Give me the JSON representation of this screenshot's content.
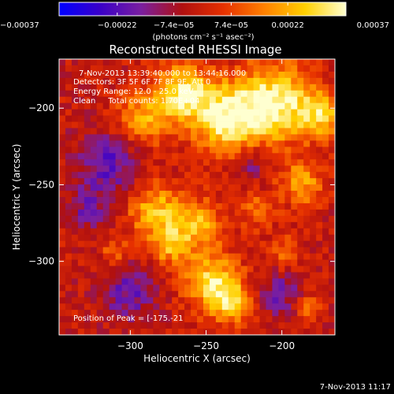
{
  "chart_data": {
    "type": "heatmap",
    "title": "Reconstructed RHESSI Image",
    "xlabel": "Heliocentric X (arcsec)",
    "ylabel": "Heliocentric Y (arcsec)",
    "xlim": [
      -347,
      -165
    ],
    "ylim": [
      -348,
      -168
    ],
    "x_ticks": [
      -300,
      -250,
      -200
    ],
    "x_tick_labels": [
      "−300",
      "−250",
      "−200"
    ],
    "y_ticks": [
      -300,
      -250,
      -200
    ],
    "y_tick_labels": [
      "−300",
      "−250",
      "−200"
    ],
    "colorbar": {
      "min": -0.00037,
      "max": 0.00037,
      "ticks": [
        -0.00037,
        -0.00022,
        -7.4e-05,
        7.4e-05,
        0.00022,
        0.00037
      ],
      "tick_labels": [
        "−0.00037",
        "−0.00022",
        "−7.4e−05",
        "7.4e−05",
        "0.00022",
        "0.00037"
      ],
      "unit_label": "(photons cm⁻² s⁻¹ asec⁻²)",
      "colors": [
        "#0000ff",
        "#3a00c8",
        "#7a1fa0",
        "#b01010",
        "#e63000",
        "#ff8000",
        "#ffd000",
        "#ffffd0"
      ]
    },
    "annotations": [
      "7-Nov-2013 13:39:40.000 to 13:44:16.000",
      "Detectors: 3F 5F 6F 7F 8F 9F, Att 0",
      "Energy Range: 12.0 - 25.0 keV",
      "Clean     Total counts: 1.70E+04"
    ],
    "peak_label": "Position of Peak = [-175.-21",
    "grid": false
  },
  "footer": {
    "timestamp": "7-Nov-2013 11:17"
  }
}
